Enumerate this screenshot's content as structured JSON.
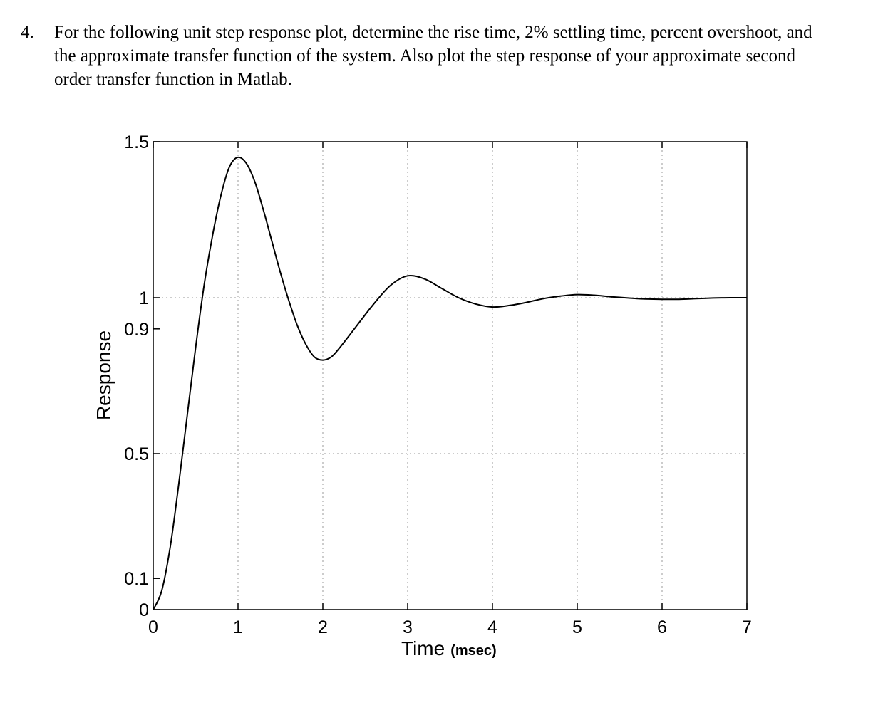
{
  "question": {
    "number": "4.",
    "lines": [
      "For the following unit step response plot, determine the rise time, 2% settling time, percent overshoot, and",
      "the approximate transfer function of the system.  Also plot the step response of your approximate second",
      "order transfer function in Matlab."
    ]
  },
  "chart_data": {
    "type": "line",
    "title": "",
    "xlabel": "Time",
    "xlabel_unit": "(msec)",
    "ylabel": "Response",
    "xlim": [
      0,
      7
    ],
    "ylim": [
      0,
      1.5
    ],
    "x_ticks": [
      0,
      1,
      2,
      3,
      4,
      5,
      6,
      7
    ],
    "y_ticks": [
      0,
      0.1,
      0.5,
      0.9,
      1,
      1.5
    ],
    "y_tick_labels": [
      "0",
      "0.1",
      "0.5",
      "0.9",
      "1",
      "1.5"
    ],
    "grid": true,
    "series": [
      {
        "values": [
          [
            0,
            0
          ],
          [
            0.1,
            0.06
          ],
          [
            0.2,
            0.2
          ],
          [
            0.3,
            0.4
          ],
          [
            0.4,
            0.62
          ],
          [
            0.5,
            0.84
          ],
          [
            0.6,
            1.04
          ],
          [
            0.7,
            1.2
          ],
          [
            0.8,
            1.33
          ],
          [
            0.9,
            1.42
          ],
          [
            1.0,
            1.45
          ],
          [
            1.1,
            1.43
          ],
          [
            1.2,
            1.37
          ],
          [
            1.3,
            1.28
          ],
          [
            1.4,
            1.18
          ],
          [
            1.5,
            1.08
          ],
          [
            1.6,
            0.99
          ],
          [
            1.7,
            0.91
          ],
          [
            1.8,
            0.85
          ],
          [
            1.9,
            0.81
          ],
          [
            2.0,
            0.8
          ],
          [
            2.1,
            0.81
          ],
          [
            2.2,
            0.84
          ],
          [
            2.4,
            0.91
          ],
          [
            2.6,
            0.98
          ],
          [
            2.8,
            1.04
          ],
          [
            3.0,
            1.07
          ],
          [
            3.2,
            1.06
          ],
          [
            3.4,
            1.03
          ],
          [
            3.6,
            1.0
          ],
          [
            3.8,
            0.98
          ],
          [
            4.0,
            0.97
          ],
          [
            4.2,
            0.975
          ],
          [
            4.4,
            0.985
          ],
          [
            4.6,
            0.997
          ],
          [
            4.8,
            1.005
          ],
          [
            5.0,
            1.01
          ],
          [
            5.2,
            1.008
          ],
          [
            5.4,
            1.003
          ],
          [
            5.6,
            0.999
          ],
          [
            5.8,
            0.996
          ],
          [
            6.0,
            0.995
          ],
          [
            6.2,
            0.995
          ],
          [
            6.4,
            0.997
          ],
          [
            6.6,
            0.999
          ],
          [
            6.8,
            1.0
          ],
          [
            7.0,
            1.0
          ]
        ],
        "color": "#000000"
      }
    ]
  }
}
